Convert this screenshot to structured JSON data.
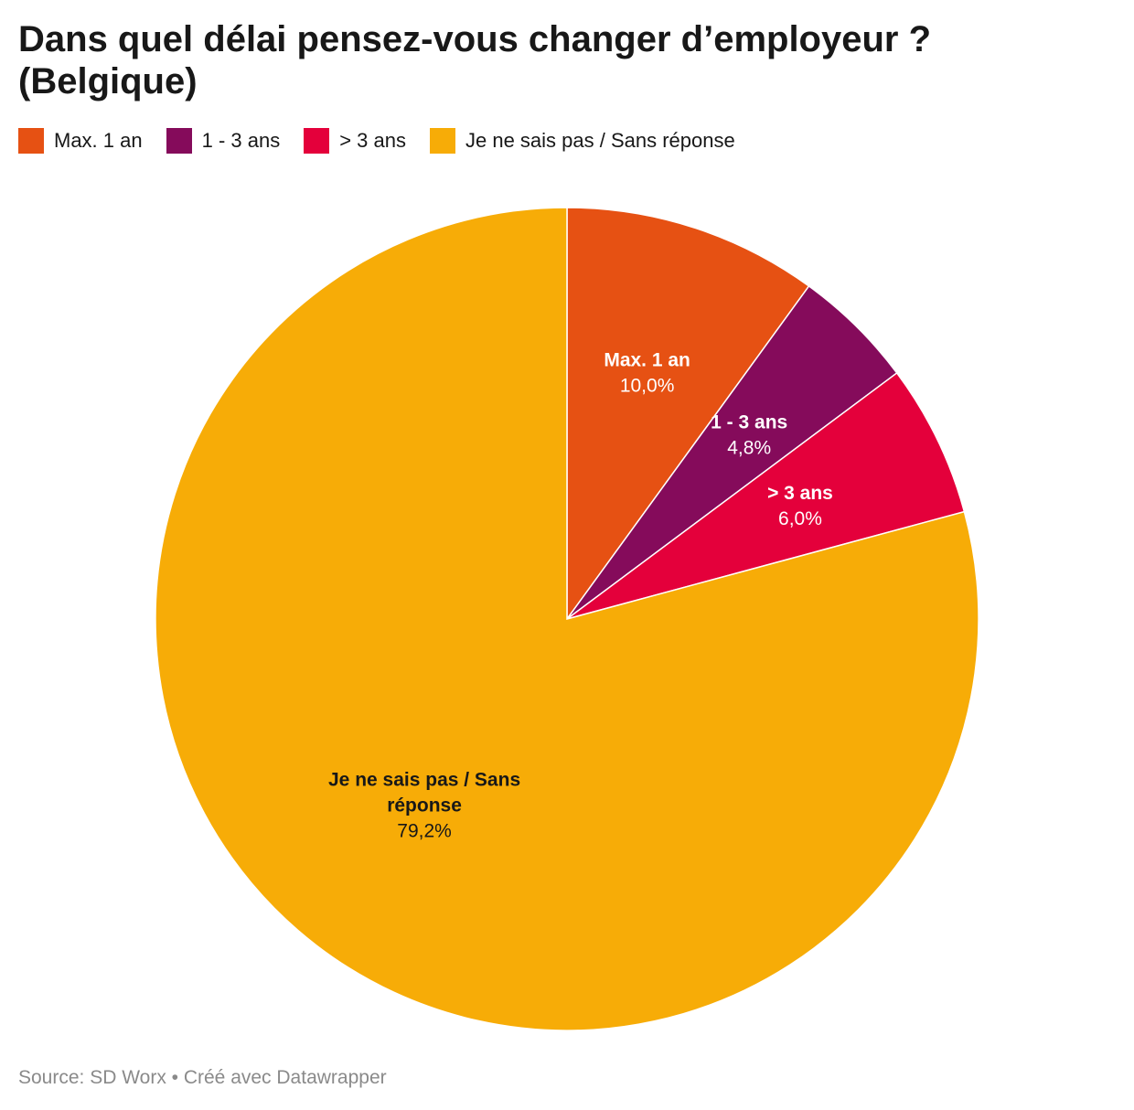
{
  "chart_data": {
    "type": "pie",
    "title": "Dans quel délai pensez-vous changer d’employeur ? (Belgique)",
    "legend_position": "top-left",
    "slices": [
      {
        "label": "Max. 1 an",
        "label_lines": [
          "Max. 1 an"
        ],
        "value": 10.0,
        "value_label": "10,0%",
        "color": "#e65113",
        "text_color": "#ffffff"
      },
      {
        "label": "1 - 3 ans",
        "label_lines": [
          "1 - 3 ans"
        ],
        "value": 4.8,
        "value_label": "4,8%",
        "color": "#850b5b",
        "text_color": "#ffffff"
      },
      {
        "label": "> 3 ans",
        "label_lines": [
          "> 3 ans"
        ],
        "value": 6.0,
        "value_label": "6,0%",
        "color": "#e4003b",
        "text_color": "#ffffff"
      },
      {
        "label": "Je ne sais pas / Sans réponse",
        "label_lines": [
          "Je ne sais pas / Sans",
          "réponse"
        ],
        "value": 79.2,
        "value_label": "79,2%",
        "color": "#f7ac07",
        "text_color": "#181818"
      }
    ]
  },
  "footer": {
    "source": "Source: SD Worx • Créé avec Datawrapper"
  }
}
